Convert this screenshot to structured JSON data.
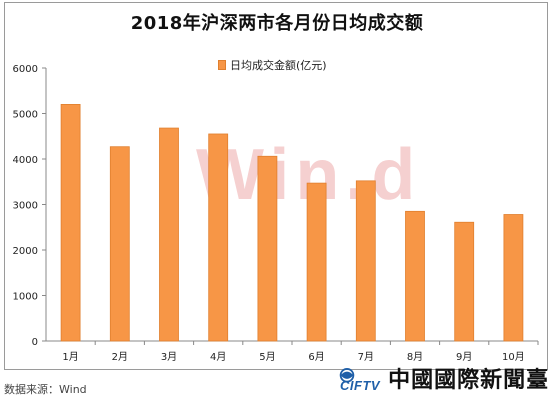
{
  "chart_data": {
    "type": "bar",
    "title": "2018年沪深两市各月份日均成交额",
    "categories": [
      "1月",
      "2月",
      "3月",
      "4月",
      "5月",
      "6月",
      "7月",
      "8月",
      "9月",
      "10月"
    ],
    "series": [
      {
        "name": "日均成交金额(亿元)",
        "values": [
          5200,
          4270,
          4680,
          4550,
          4060,
          3470,
          3520,
          2850,
          2610,
          2780
        ],
        "color": "#f79646"
      }
    ],
    "ylim": [
      0,
      6000
    ],
    "yticks": [
      0,
      1000,
      2000,
      3000,
      4000,
      5000,
      6000
    ],
    "grid": false,
    "legend_position": "top-center"
  },
  "source": "数据来源：Wind",
  "watermark": "Win.d",
  "logo": {
    "brand": "CIFTV",
    "name_cn": "中國國際新聞臺"
  }
}
